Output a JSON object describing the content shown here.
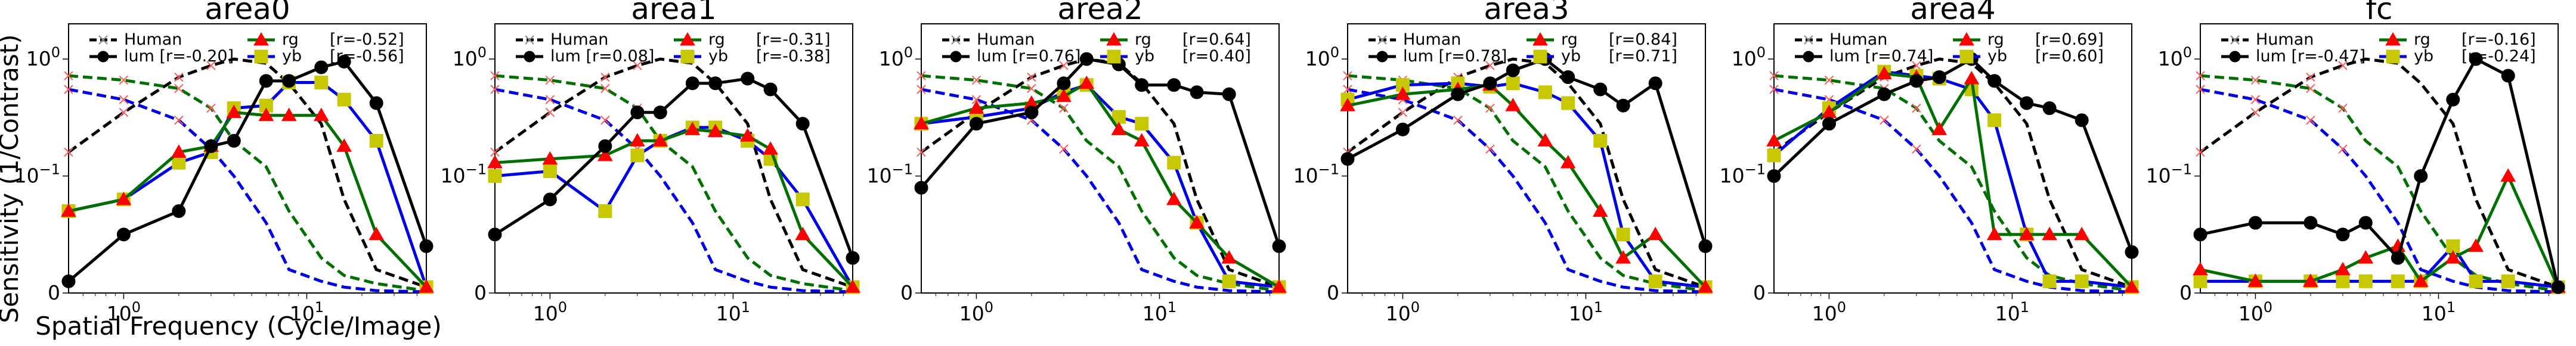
{
  "figure": {
    "ylabel": "Sensitivity (1/Contrast)",
    "xlabel": "Spatial Frequency (Cycle/Image)"
  },
  "colors": {
    "Human": "#000000",
    "lum": "#000000",
    "rg": "#007000",
    "yb": "#0000e6",
    "rg_marker": "#ff0000",
    "yb_marker": "#c8c800",
    "human_marker": "#ff5a5a"
  },
  "chart_data": [
    {
      "type": "line",
      "title": "area0",
      "x_scale": "log",
      "y_scale": "symlog",
      "xlim": [
        0.5,
        45
      ],
      "ylim": [
        0,
        2.0
      ],
      "legend": "top",
      "x_ticks": [
        "10^0",
        "10^1"
      ],
      "y_ticks": [
        "0",
        "10^-1",
        "10^0"
      ],
      "legend_entries": [
        {
          "label": "Human",
          "r": ""
        },
        {
          "label": "lum",
          "r": "[r=-0.20]"
        },
        {
          "label": "rg",
          "r": "[r=-0.52]"
        },
        {
          "label": "yb",
          "r": "[r=-0.56]"
        }
      ],
      "x": [
        0.5,
        1.0,
        2.0,
        3.0,
        4.0,
        6.0,
        8.0,
        12.0,
        16.0,
        24.0,
        45.0
      ],
      "human": {
        "achromatic": [
          0.16,
          0.35,
          0.7,
          0.88,
          1.0,
          0.92,
          0.62,
          0.28,
          0.08,
          0.02,
          0.005
        ],
        "rg": [
          0.72,
          0.66,
          0.56,
          0.38,
          0.2,
          0.12,
          0.07,
          0.03,
          0.015,
          0.008,
          0.002
        ],
        "yb": [
          0.55,
          0.45,
          0.3,
          0.17,
          0.1,
          0.06,
          0.02,
          0.01,
          0.005,
          0.002,
          0.001
        ]
      },
      "series": [
        {
          "name": "lum",
          "x": [
            0.5,
            1.0,
            2.0,
            3.0,
            4.0,
            6.0,
            8.0,
            12.0,
            16.0,
            24.0,
            45.0
          ],
          "values": [
            0.01,
            0.05,
            0.07,
            0.18,
            0.2,
            0.65,
            0.65,
            0.85,
            0.95,
            0.42,
            0.04
          ]
        },
        {
          "name": "rg",
          "x": [
            0.5,
            1.0,
            2.0,
            3.0,
            4.0,
            6.0,
            8.0,
            12.0,
            16.0,
            24.0,
            45.0
          ],
          "values": [
            0.07,
            0.08,
            0.16,
            0.18,
            0.35,
            0.33,
            0.33,
            0.33,
            0.18,
            0.05,
            0.005
          ]
        },
        {
          "name": "yb",
          "x": [
            0.5,
            1.0,
            2.0,
            3.0,
            4.0,
            6.0,
            8.0,
            12.0,
            16.0,
            24.0,
            45.0
          ],
          "values": [
            0.07,
            0.08,
            0.13,
            0.16,
            0.38,
            0.4,
            0.63,
            0.63,
            0.45,
            0.2,
            0.005
          ]
        }
      ]
    },
    {
      "type": "line",
      "title": "area1",
      "x_scale": "log",
      "y_scale": "symlog",
      "xlim": [
        0.5,
        45
      ],
      "ylim": [
        0,
        2.0
      ],
      "legend": "top",
      "x_ticks": [
        "10^0",
        "10^1"
      ],
      "y_ticks": [
        "0",
        "10^-1",
        "10^0"
      ],
      "legend_entries": [
        {
          "label": "Human",
          "r": ""
        },
        {
          "label": "lum",
          "r": "[r=0.08]"
        },
        {
          "label": "rg",
          "r": "[r=-0.31]"
        },
        {
          "label": "yb",
          "r": "[r=-0.38]"
        }
      ],
      "x": [
        0.5,
        1.0,
        2.0,
        3.0,
        4.0,
        6.0,
        8.0,
        12.0,
        16.0,
        24.0,
        45.0
      ],
      "human": {
        "achromatic": [
          0.16,
          0.35,
          0.7,
          0.88,
          1.0,
          0.92,
          0.62,
          0.28,
          0.08,
          0.02,
          0.005
        ],
        "rg": [
          0.72,
          0.66,
          0.56,
          0.38,
          0.2,
          0.12,
          0.07,
          0.03,
          0.015,
          0.008,
          0.002
        ],
        "yb": [
          0.55,
          0.45,
          0.3,
          0.17,
          0.1,
          0.06,
          0.02,
          0.01,
          0.005,
          0.002,
          0.001
        ]
      },
      "series": [
        {
          "name": "lum",
          "x": [
            0.5,
            1.0,
            2.0,
            3.0,
            4.0,
            6.0,
            8.0,
            12.0,
            16.0,
            24.0,
            45.0
          ],
          "values": [
            0.05,
            0.08,
            0.18,
            0.35,
            0.35,
            0.62,
            0.62,
            0.68,
            0.55,
            0.28,
            0.03
          ]
        },
        {
          "name": "rg",
          "x": [
            0.5,
            1.0,
            2.0,
            3.0,
            4.0,
            6.0,
            8.0,
            12.0,
            16.0,
            24.0,
            45.0
          ],
          "values": [
            0.13,
            0.14,
            0.15,
            0.2,
            0.2,
            0.25,
            0.24,
            0.22,
            0.17,
            0.05,
            0.005
          ]
        },
        {
          "name": "yb",
          "x": [
            0.5,
            1.0,
            2.0,
            3.0,
            4.0,
            6.0,
            8.0,
            12.0,
            16.0,
            24.0,
            45.0
          ],
          "values": [
            0.1,
            0.11,
            0.07,
            0.15,
            0.2,
            0.26,
            0.26,
            0.2,
            0.14,
            0.08,
            0.005
          ]
        }
      ]
    },
    {
      "type": "line",
      "title": "area2",
      "x_scale": "log",
      "y_scale": "symlog",
      "xlim": [
        0.5,
        45
      ],
      "ylim": [
        0,
        2.0
      ],
      "legend": "top",
      "x_ticks": [
        "10^0",
        "10^1"
      ],
      "y_ticks": [
        "0",
        "10^-1",
        "10^0"
      ],
      "legend_entries": [
        {
          "label": "Human",
          "r": ""
        },
        {
          "label": "lum",
          "r": "[r=0.76]"
        },
        {
          "label": "rg",
          "r": "[r=0.64]"
        },
        {
          "label": "yb",
          "r": "[r=0.40]"
        }
      ],
      "x": [
        0.5,
        1.0,
        2.0,
        3.0,
        4.0,
        6.0,
        8.0,
        12.0,
        16.0,
        24.0,
        45.0
      ],
      "human": {
        "achromatic": [
          0.16,
          0.35,
          0.7,
          0.88,
          1.0,
          0.92,
          0.62,
          0.28,
          0.08,
          0.02,
          0.005
        ],
        "rg": [
          0.72,
          0.66,
          0.56,
          0.38,
          0.2,
          0.12,
          0.07,
          0.03,
          0.015,
          0.008,
          0.002
        ],
        "yb": [
          0.55,
          0.45,
          0.3,
          0.17,
          0.1,
          0.06,
          0.02,
          0.01,
          0.005,
          0.002,
          0.001
        ]
      },
      "series": [
        {
          "name": "lum",
          "x": [
            0.5,
            1.0,
            2.0,
            3.0,
            4.0,
            6.0,
            8.0,
            12.0,
            16.0,
            24.0,
            45.0
          ],
          "values": [
            0.09,
            0.28,
            0.35,
            0.62,
            1.0,
            0.9,
            0.6,
            0.6,
            0.52,
            0.5,
            0.04
          ]
        },
        {
          "name": "rg",
          "x": [
            0.5,
            1.0,
            2.0,
            3.0,
            4.0,
            6.0,
            8.0,
            12.0,
            16.0,
            24.0,
            45.0
          ],
          "values": [
            0.28,
            0.38,
            0.42,
            0.48,
            0.62,
            0.25,
            0.2,
            0.08,
            0.06,
            0.03,
            0.005
          ]
        },
        {
          "name": "yb",
          "x": [
            0.5,
            1.0,
            2.0,
            3.0,
            4.0,
            6.0,
            8.0,
            12.0,
            16.0,
            24.0,
            45.0
          ],
          "values": [
            0.28,
            0.32,
            0.38,
            0.52,
            0.6,
            0.32,
            0.28,
            0.13,
            0.06,
            0.01,
            0.005
          ]
        }
      ]
    },
    {
      "type": "line",
      "title": "area3",
      "x_scale": "log",
      "y_scale": "symlog",
      "xlim": [
        0.5,
        45
      ],
      "ylim": [
        0,
        2.0
      ],
      "legend": "top",
      "x_ticks": [
        "10^0",
        "10^1"
      ],
      "y_ticks": [
        "0",
        "10^-1",
        "10^0"
      ],
      "legend_entries": [
        {
          "label": "Human",
          "r": ""
        },
        {
          "label": "lum",
          "r": "[r=0.78]"
        },
        {
          "label": "rg",
          "r": "[r=0.84]"
        },
        {
          "label": "yb",
          "r": "[r=0.71]"
        }
      ],
      "x": [
        0.5,
        1.0,
        2.0,
        3.0,
        4.0,
        6.0,
        8.0,
        12.0,
        16.0,
        24.0,
        45.0
      ],
      "human": {
        "achromatic": [
          0.16,
          0.35,
          0.7,
          0.88,
          1.0,
          0.92,
          0.62,
          0.28,
          0.08,
          0.02,
          0.005
        ],
        "rg": [
          0.72,
          0.66,
          0.56,
          0.38,
          0.2,
          0.12,
          0.07,
          0.03,
          0.015,
          0.008,
          0.002
        ],
        "yb": [
          0.55,
          0.45,
          0.3,
          0.17,
          0.1,
          0.06,
          0.02,
          0.01,
          0.005,
          0.002,
          0.001
        ]
      },
      "series": [
        {
          "name": "lum",
          "x": [
            0.5,
            1.0,
            2.0,
            3.0,
            4.0,
            6.0,
            8.0,
            12.0,
            16.0,
            24.0,
            45.0
          ],
          "values": [
            0.14,
            0.25,
            0.5,
            0.62,
            0.8,
            1.0,
            0.7,
            0.55,
            0.4,
            0.62,
            0.04
          ]
        },
        {
          "name": "rg",
          "x": [
            0.5,
            1.0,
            2.0,
            3.0,
            4.0,
            6.0,
            8.0,
            12.0,
            16.0,
            24.0,
            45.0
          ],
          "values": [
            0.4,
            0.5,
            0.55,
            0.6,
            0.4,
            0.2,
            0.13,
            0.07,
            0.03,
            0.05,
            0.005
          ]
        },
        {
          "name": "yb",
          "x": [
            0.5,
            1.0,
            2.0,
            3.0,
            4.0,
            6.0,
            8.0,
            12.0,
            16.0,
            24.0,
            45.0
          ],
          "values": [
            0.45,
            0.6,
            0.62,
            0.58,
            0.62,
            0.52,
            0.42,
            0.2,
            0.05,
            0.01,
            0.005
          ]
        }
      ]
    },
    {
      "type": "line",
      "title": "area4",
      "x_scale": "log",
      "y_scale": "symlog",
      "xlim": [
        0.5,
        45
      ],
      "ylim": [
        0,
        2.0
      ],
      "legend": "top",
      "x_ticks": [
        "10^0",
        "10^1"
      ],
      "y_ticks": [
        "0",
        "10^-1",
        "10^0"
      ],
      "legend_entries": [
        {
          "label": "Human",
          "r": ""
        },
        {
          "label": "lum",
          "r": "[r=0.74]"
        },
        {
          "label": "rg",
          "r": "[r=0.69]"
        },
        {
          "label": "yb",
          "r": "[r=0.60]"
        }
      ],
      "x": [
        0.5,
        1.0,
        2.0,
        3.0,
        4.0,
        6.0,
        8.0,
        12.0,
        16.0,
        24.0,
        45.0
      ],
      "human": {
        "achromatic": [
          0.16,
          0.35,
          0.7,
          0.88,
          1.0,
          0.92,
          0.62,
          0.28,
          0.08,
          0.02,
          0.005
        ],
        "rg": [
          0.72,
          0.66,
          0.56,
          0.38,
          0.2,
          0.12,
          0.07,
          0.03,
          0.015,
          0.008,
          0.002
        ],
        "yb": [
          0.55,
          0.45,
          0.3,
          0.17,
          0.1,
          0.06,
          0.02,
          0.01,
          0.005,
          0.002,
          0.001
        ]
      },
      "series": [
        {
          "name": "lum",
          "x": [
            0.5,
            1.0,
            2.0,
            3.0,
            4.0,
            6.0,
            8.0,
            12.0,
            16.0,
            24.0,
            45.0
          ],
          "values": [
            0.1,
            0.28,
            0.5,
            0.65,
            0.7,
            1.0,
            0.65,
            0.42,
            0.38,
            0.3,
            0.035
          ]
        },
        {
          "name": "rg",
          "x": [
            0.5,
            1.0,
            2.0,
            3.0,
            4.0,
            6.0,
            8.0,
            12.0,
            16.0,
            24.0,
            45.0
          ],
          "values": [
            0.2,
            0.35,
            0.75,
            0.7,
            0.25,
            0.68,
            0.05,
            0.05,
            0.05,
            0.05,
            0.005
          ]
        },
        {
          "name": "yb",
          "x": [
            0.5,
            1.0,
            2.0,
            3.0,
            4.0,
            6.0,
            8.0,
            12.0,
            16.0,
            24.0,
            45.0
          ],
          "values": [
            0.15,
            0.38,
            0.78,
            0.72,
            0.68,
            0.55,
            0.3,
            0.05,
            0.01,
            0.01,
            0.005
          ]
        }
      ]
    },
    {
      "type": "line",
      "title": "fc",
      "x_scale": "log",
      "y_scale": "symlog",
      "xlim": [
        0.5,
        45
      ],
      "ylim": [
        0,
        2.0
      ],
      "legend": "top",
      "x_ticks": [
        "10^0",
        "10^1"
      ],
      "y_ticks": [
        "0",
        "10^-1",
        "10^0"
      ],
      "legend_entries": [
        {
          "label": "Human",
          "r": ""
        },
        {
          "label": "lum",
          "r": "[r=-0.47]"
        },
        {
          "label": "rg",
          "r": "[r=-0.16]"
        },
        {
          "label": "yb",
          "r": "[r=-0.24]"
        }
      ],
      "x": [
        0.5,
        1.0,
        2.0,
        3.0,
        4.0,
        6.0,
        8.0,
        12.0,
        16.0,
        24.0,
        45.0
      ],
      "human": {
        "achromatic": [
          0.16,
          0.35,
          0.7,
          0.88,
          1.0,
          0.92,
          0.62,
          0.28,
          0.08,
          0.02,
          0.005
        ],
        "rg": [
          0.72,
          0.66,
          0.56,
          0.38,
          0.2,
          0.12,
          0.07,
          0.03,
          0.015,
          0.008,
          0.002
        ],
        "yb": [
          0.55,
          0.45,
          0.3,
          0.17,
          0.1,
          0.06,
          0.02,
          0.01,
          0.005,
          0.002,
          0.001
        ]
      },
      "series": [
        {
          "name": "lum",
          "x": [
            0.5,
            1.0,
            2.0,
            3.0,
            4.0,
            6.0,
            8.0,
            12.0,
            16.0,
            24.0,
            45.0
          ],
          "values": [
            0.05,
            0.06,
            0.06,
            0.05,
            0.06,
            0.03,
            0.1,
            0.45,
            1.0,
            0.72,
            0.005
          ]
        },
        {
          "name": "rg",
          "x": [
            0.5,
            1.0,
            2.0,
            3.0,
            4.0,
            6.0,
            8.0,
            12.0,
            16.0,
            24.0,
            45.0
          ],
          "values": [
            0.02,
            0.01,
            0.01,
            0.02,
            0.03,
            0.04,
            0.01,
            0.03,
            0.04,
            0.1,
            0.005
          ]
        },
        {
          "name": "yb",
          "x": [
            0.5,
            1.0,
            2.0,
            3.0,
            4.0,
            6.0,
            8.0,
            12.0,
            16.0,
            24.0,
            45.0
          ],
          "values": [
            0.01,
            0.01,
            0.01,
            0.01,
            0.01,
            0.01,
            0.01,
            0.04,
            0.01,
            0.01,
            0.005
          ]
        }
      ]
    }
  ]
}
